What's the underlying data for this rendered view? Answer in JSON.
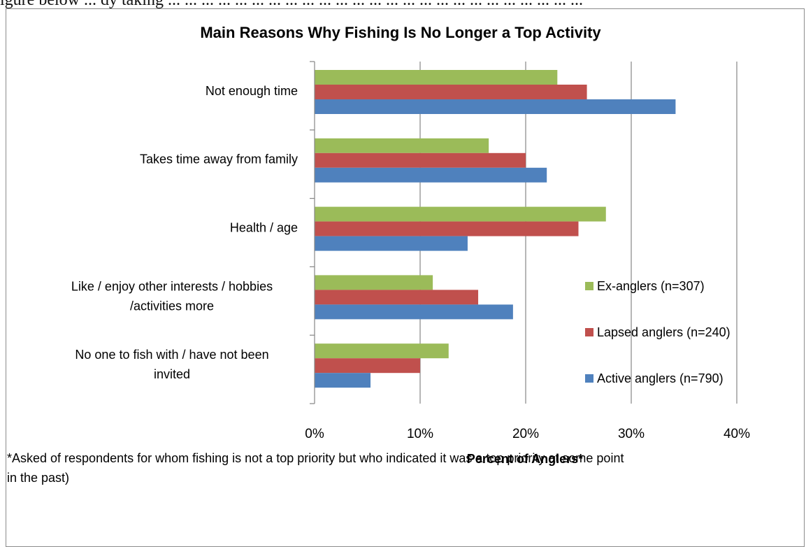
{
  "page": {
    "top_text": "igure below ... dy taking ... ... ... ... ... ... ... ... ... ... ... ... ... ... ... ... ... ... ... ... ... ... ... ... ..."
  },
  "chart_data": {
    "type": "bar",
    "orientation": "horizontal",
    "title": "Main Reasons Why Fishing Is No Longer a Top Activity",
    "xlabel": "Percent of Anglers*",
    "ylabel": "",
    "xlim": [
      0,
      40
    ],
    "x_ticks": [
      "0%",
      "10%",
      "20%",
      "30%",
      "40%"
    ],
    "x_tick_values": [
      0,
      10,
      20,
      30,
      40
    ],
    "grid": "vertical major gridlines",
    "legend_position": "right",
    "categories": [
      [
        "Not enough time"
      ],
      [
        "Takes time away from family"
      ],
      [
        "Health / age"
      ],
      [
        "Like / enjoy other interests / hobbies",
        "/activities more"
      ],
      [
        "No one to fish with / have not been",
        "invited"
      ]
    ],
    "series": [
      {
        "name": "Ex-anglers (n=307)",
        "color": "#9bbb59",
        "values": [
          23,
          16.5,
          27.6,
          11.2,
          12.7
        ]
      },
      {
        "name": "Lapsed anglers (n=240)",
        "color": "#c0504d",
        "values": [
          25.8,
          20,
          25,
          15.5,
          10
        ]
      },
      {
        "name": "Active anglers (n=790)",
        "color": "#4f81bd",
        "values": [
          34.2,
          22,
          14.5,
          18.8,
          5.3
        ]
      }
    ]
  },
  "footnote": {
    "line1": "*Asked of respondents for whom fishing is not a top priority but who indicated it was a top priority at some point",
    "line2": "in the past)"
  }
}
